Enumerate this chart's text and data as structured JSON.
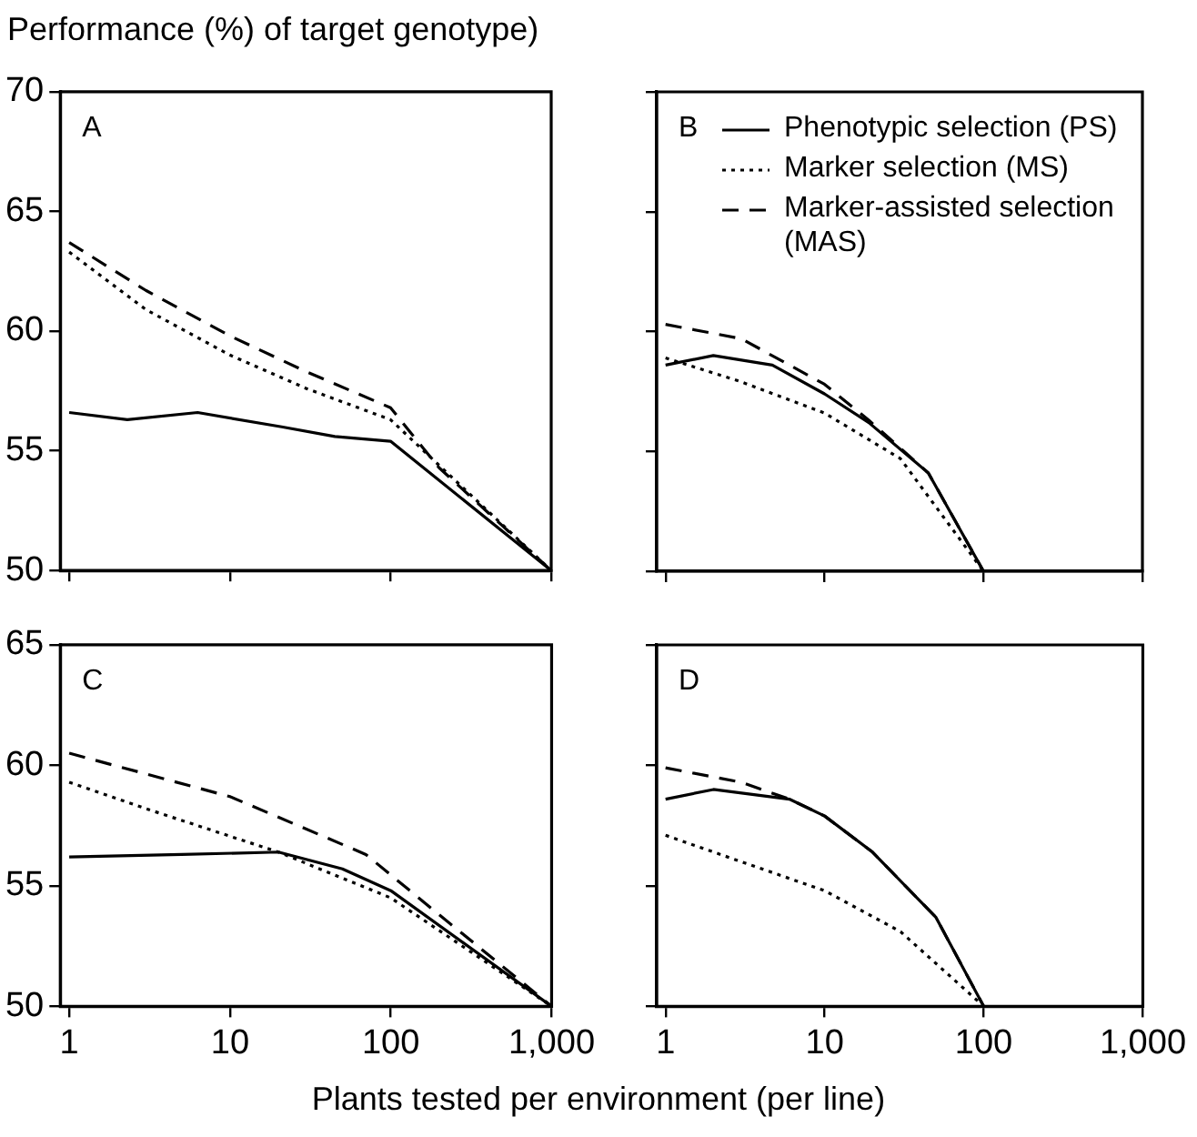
{
  "chart_data": [
    {
      "type": "line",
      "ylabel": "Performance (%) of target genotype)",
      "annotations": [
        "A"
      ],
      "log": "x",
      "xlim": [
        0.88,
        1000
      ],
      "xticks": [
        {
          "value": 1,
          "label": null
        },
        {
          "value": 10,
          "label": null
        },
        {
          "value": 100,
          "label": null
        },
        {
          "value": 1000,
          "label": null
        }
      ],
      "ylim": [
        50,
        70
      ],
      "yticks": [
        50,
        55,
        60,
        65,
        70
      ],
      "tick_labels": "y",
      "series": [
        {
          "color": "#000000",
          "line_style": "solid",
          "x": [
            1,
            2.3,
            6.3,
            21,
            45,
            100,
            1000
          ],
          "values": [
            56.6,
            56.3,
            56.6,
            56.0,
            55.6,
            55.4,
            50
          ]
        },
        {
          "color": "#000000",
          "line_style": "dotted",
          "x": [
            1,
            3,
            10,
            30,
            100,
            1000
          ],
          "values": [
            63.3,
            60.9,
            59.0,
            57.6,
            56.3,
            50
          ]
        },
        {
          "color": "#000000",
          "line_style": "dashed",
          "x": [
            1,
            3,
            10,
            30,
            100,
            200,
            1000
          ],
          "values": [
            63.7,
            61.7,
            59.8,
            58.3,
            56.8,
            54.3,
            50
          ]
        }
      ]
    },
    {
      "type": "line",
      "annotations": [
        "B"
      ],
      "legend": "top right",
      "log": "x",
      "xlim": [
        0.88,
        1000
      ],
      "xticks": [
        {
          "value": 1,
          "label": null
        },
        {
          "value": 10,
          "label": null
        },
        {
          "value": 100,
          "label": null
        },
        {
          "value": 1000,
          "label": null
        }
      ],
      "ylim": [
        50,
        70
      ],
      "yticks": [
        {
          "value": 50,
          "label": null
        },
        {
          "value": 55,
          "label": null
        },
        {
          "value": 60,
          "label": null
        },
        {
          "value": 65,
          "label": null
        },
        {
          "value": 70,
          "label": null
        }
      ],
      "tick_labels": false,
      "series": [
        {
          "name": "Phenotypic selection (PS)",
          "color": "#000000",
          "line_style": "solid",
          "x": [
            1,
            2,
            4.7,
            10,
            19,
            45,
            100
          ],
          "values": [
            58.6,
            59.0,
            58.6,
            57.4,
            56.2,
            54.1,
            50
          ]
        },
        {
          "name": "Marker selection (MS)",
          "color": "#000000",
          "line_style": "dotted",
          "x": [
            1,
            3,
            10,
            30,
            100
          ],
          "values": [
            58.9,
            57.9,
            56.6,
            54.7,
            50
          ]
        },
        {
          "name": "Marker-assisted selection (MAS)",
          "color": "#000000",
          "line_style": "dashed",
          "x": [
            1,
            3,
            10,
            19,
            45,
            100
          ],
          "values": [
            60.3,
            59.7,
            57.8,
            56.3,
            54.1,
            50
          ]
        }
      ]
    },
    {
      "type": "line",
      "xlabel": "Plants tested per environment (per line)",
      "annotations": [
        "C"
      ],
      "log": "x",
      "xlim": [
        0.88,
        1000
      ],
      "xticks": [
        1,
        10,
        100,
        {
          "value": 1000,
          "label": "1,000"
        }
      ],
      "ylim": [
        50,
        65
      ],
      "yticks": [
        50,
        55,
        60,
        65
      ],
      "series": [
        {
          "color": "#000000",
          "line_style": "solid",
          "x": [
            1,
            5,
            20,
            50,
            100,
            1000
          ],
          "values": [
            56.2,
            56.3,
            56.4,
            55.7,
            54.8,
            50
          ]
        },
        {
          "color": "#000000",
          "line_style": "dotted",
          "x": [
            1,
            3,
            20,
            100,
            1000
          ],
          "values": [
            59.3,
            58.2,
            56.4,
            54.5,
            50
          ]
        },
        {
          "color": "#000000",
          "line_style": "dashed",
          "x": [
            1,
            10,
            70,
            200,
            1000
          ],
          "values": [
            60.5,
            58.7,
            56.3,
            53.8,
            50
          ]
        }
      ]
    },
    {
      "type": "line",
      "annotations": [
        "D"
      ],
      "log": "x",
      "xlim": [
        0.88,
        1000
      ],
      "xticks": [
        1,
        10,
        100,
        {
          "value": 1000,
          "label": "1,000"
        }
      ],
      "ylim": [
        50,
        65
      ],
      "yticks": [
        {
          "value": 50,
          "label": null
        },
        {
          "value": 55,
          "label": null
        },
        {
          "value": 60,
          "label": null
        },
        {
          "value": 65,
          "label": null
        }
      ],
      "tick_labels": "x",
      "series": [
        {
          "color": "#000000",
          "line_style": "solid",
          "x": [
            1,
            2,
            6,
            10,
            20,
            50,
            100
          ],
          "values": [
            58.6,
            59.0,
            58.6,
            57.9,
            56.4,
            53.7,
            50
          ]
        },
        {
          "color": "#000000",
          "line_style": "dotted",
          "x": [
            1,
            3,
            10,
            30,
            100
          ],
          "values": [
            57.1,
            56.0,
            54.8,
            53.1,
            50
          ]
        },
        {
          "color": "#000000",
          "line_style": "dashed",
          "x": [
            1,
            3,
            6,
            10,
            20,
            50,
            100
          ],
          "values": [
            59.9,
            59.3,
            58.6,
            57.9,
            56.4,
            53.7,
            50
          ]
        }
      ]
    }
  ]
}
